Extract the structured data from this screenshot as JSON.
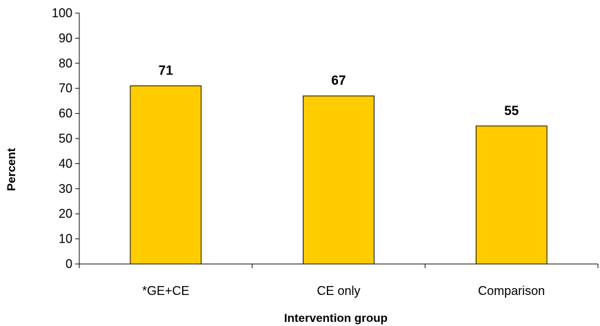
{
  "chart_data": {
    "type": "bar",
    "categories": [
      "*GE+CE",
      "CE only",
      "Comparison"
    ],
    "values": [
      71,
      67,
      55
    ],
    "data_labels": [
      "71",
      "67",
      "55"
    ],
    "title": "",
    "xlabel": "Intervention group",
    "ylabel": "Percent",
    "ylim": [
      0,
      100
    ],
    "yticks": [
      0,
      10,
      20,
      30,
      40,
      50,
      60,
      70,
      80,
      90,
      100
    ],
    "grid": false,
    "legend": "none",
    "bar_color": "#FFCC00",
    "bar_edge_color": "#000000"
  }
}
